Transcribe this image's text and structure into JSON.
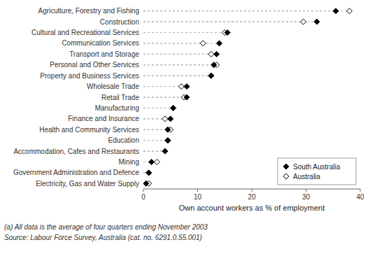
{
  "chart_data": {
    "type": "dot",
    "orientation": "horizontal",
    "categories": [
      "Agriculture, Forestry and Fishing",
      "Construction",
      "Cultural and Recreational Services",
      "Communication Services",
      "Transport and Storage",
      "Personal and Other Services",
      "Property and Business Services",
      "Wholesale Trade",
      "Retail Trade",
      "Manufacturing",
      "Finance and Insurance",
      "Health and Community Services",
      "Education",
      "Accommodation, Cafes and Restaurants",
      "Mining",
      "Government Administration and Defence",
      "Electricity, Gas and Water Supply"
    ],
    "series": [
      {
        "name": "South Australia",
        "color": "black",
        "marker": "diamond",
        "values": [
          35.5,
          32.0,
          15.5,
          14.0,
          13.5,
          13.0,
          12.5,
          8.0,
          8.0,
          5.5,
          5.0,
          4.5,
          4.5,
          4.0,
          1.5,
          1.0,
          0.5
        ]
      },
      {
        "name": "Australia",
        "color": "black",
        "marker": "open-diamond",
        "values": [
          38.0,
          29.5,
          15.0,
          11.0,
          12.5,
          13.5,
          12.5,
          7.0,
          7.5,
          5.5,
          4.0,
          5.0,
          4.5,
          4.0,
          2.5,
          1.0,
          1.0
        ]
      }
    ],
    "color": "#b0b0b0",
    "xlabel": "Own account workers as % of employment",
    "xlim": [
      0,
      40
    ],
    "xticks": [
      0,
      10,
      20,
      30,
      40
    ],
    "grid": false,
    "legend": "lower right",
    "annotations": [
      "(a) All data is the average of four quarters ending November 2003",
      "Source: Labour Force Survey, Australia (cat. no. 6291.0.55.001)"
    ]
  }
}
